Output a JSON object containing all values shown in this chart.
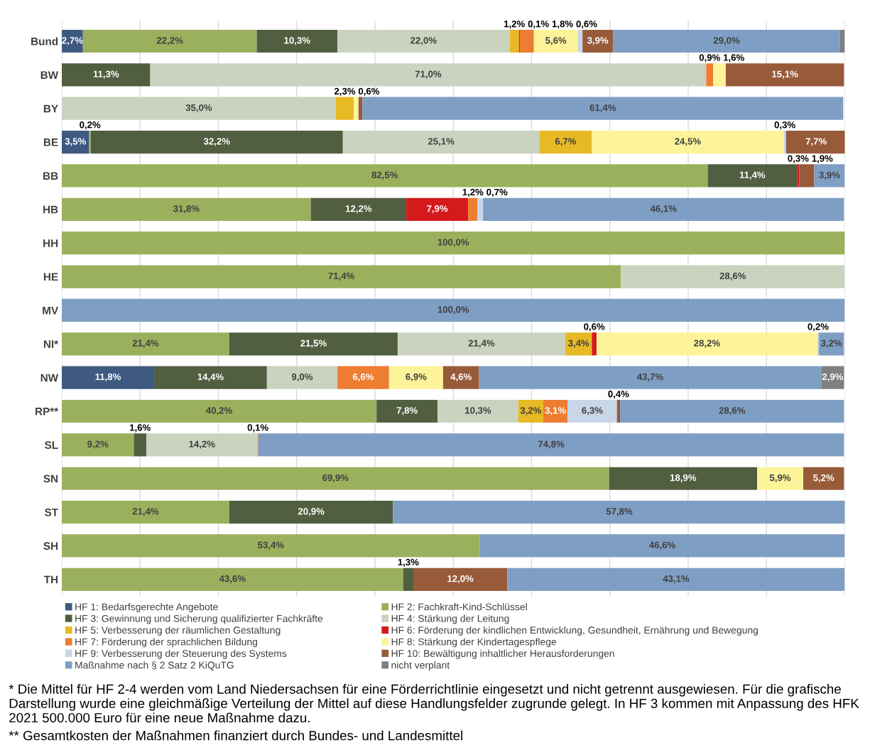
{
  "chart_data": {
    "type": "bar",
    "orientation": "horizontal",
    "stacked": true,
    "categories": [
      "Bund",
      "BW",
      "BY",
      "BE",
      "BB",
      "HB",
      "HH",
      "HE",
      "MV",
      "NI*",
      "NW",
      "RP**",
      "SL",
      "SN",
      "ST",
      "SH",
      "TH"
    ],
    "xlim": [
      0,
      100
    ],
    "xticks": [
      {
        "value": 0,
        "label": null
      },
      {
        "value": 10,
        "label": null
      },
      {
        "value": 20,
        "label": null
      },
      {
        "value": 30,
        "label": null
      },
      {
        "value": 40,
        "label": null
      },
      {
        "value": 50,
        "label": null
      },
      {
        "value": 60,
        "label": null
      },
      {
        "value": 70,
        "label": null
      },
      {
        "value": 80,
        "label": null
      },
      {
        "value": 90,
        "label": null
      },
      {
        "value": 100,
        "label": null
      }
    ],
    "tick_labels": "y",
    "grid": "x",
    "legend": "bottom",
    "series": [
      {
        "name": "HF 1: Bedarfsgerechte Angebote",
        "color": "#3f5a80",
        "values": [
          2.7,
          null,
          null,
          3.5,
          null,
          null,
          null,
          null,
          null,
          null,
          11.8,
          null,
          null,
          null,
          null,
          null,
          null
        ],
        "value_labels": [
          "2,7%",
          null,
          null,
          "3,5%",
          null,
          null,
          null,
          null,
          null,
          null,
          "11,8%",
          null,
          null,
          null,
          null,
          null,
          null
        ]
      },
      {
        "name": "HF 2: Fachkraft-Kind-Schlüssel",
        "color": "#9bb05d",
        "values": [
          22.2,
          null,
          null,
          0.2,
          82.5,
          31.8,
          100.0,
          71.4,
          null,
          21.4,
          null,
          40.2,
          9.2,
          69.9,
          21.4,
          53.4,
          43.6
        ],
        "value_labels": [
          "22,2%",
          null,
          null,
          "0,2%",
          "82,5%",
          "31,8%",
          "100,0%",
          "71,4%",
          null,
          "21,4%",
          null,
          "40,2%",
          "9,2%",
          "69,9%",
          "21,4%",
          "53,4%",
          "43,6%"
        ]
      },
      {
        "name": "HF 3: Gewinnung und Sicherung qualifizierter Fachkräfte",
        "color": "#515f40",
        "values": [
          10.3,
          11.3,
          null,
          32.2,
          11.4,
          12.2,
          null,
          null,
          null,
          21.5,
          14.4,
          7.8,
          1.6,
          18.9,
          20.9,
          null,
          1.3
        ],
        "value_labels": [
          "10,3%",
          "11,3%",
          null,
          "32,2%",
          "11,4%",
          "12,2%",
          null,
          null,
          null,
          "21,5%",
          "14,4%",
          "7,8%",
          "1,6%",
          "18,9%",
          "20,9%",
          null,
          "1,3%"
        ]
      },
      {
        "name": "HF 4: Stärkung der Leitung",
        "color": "#cad3bf",
        "values": [
          22.0,
          71.0,
          35.0,
          25.1,
          null,
          null,
          null,
          28.6,
          null,
          21.4,
          9.0,
          10.3,
          14.2,
          null,
          null,
          null,
          null
        ],
        "value_labels": [
          "22,0%",
          "71,0%",
          "35,0%",
          "25,1%",
          null,
          null,
          null,
          "28,6%",
          null,
          "21,4%",
          "9,0%",
          "10,3%",
          "14,2%",
          null,
          null,
          null,
          null
        ]
      },
      {
        "name": "HF 5: Verbesserung der räumlichen Gestaltung",
        "color": "#e6b925",
        "values": [
          1.2,
          null,
          2.3,
          6.7,
          null,
          null,
          null,
          null,
          null,
          3.4,
          null,
          3.2,
          null,
          null,
          null,
          null,
          null
        ],
        "value_labels": [
          "1,2%",
          null,
          "2,3%",
          "6,7%",
          null,
          null,
          null,
          null,
          null,
          "3,4%",
          null,
          "3,2%",
          null,
          null,
          null,
          null,
          null
        ]
      },
      {
        "name": "HF 6: Förderung der kindlichen Entwicklung, Gesundheit, Ernährung und Bewegung",
        "color": "#d51a1c",
        "values": [
          0.1,
          null,
          null,
          null,
          0.3,
          7.9,
          null,
          null,
          null,
          0.6,
          null,
          null,
          null,
          null,
          null,
          null,
          null
        ],
        "value_labels": [
          "0,1%",
          null,
          null,
          null,
          "0,3%",
          "7,9%",
          null,
          null,
          null,
          "0,6%",
          null,
          null,
          null,
          null,
          null,
          null,
          null
        ]
      },
      {
        "name": "HF 7: Förderung der sprachlichen Bildung",
        "color": "#ed7d31",
        "values": [
          1.8,
          0.9,
          null,
          null,
          null,
          1.2,
          null,
          null,
          null,
          null,
          6.6,
          3.1,
          0.1,
          null,
          null,
          null,
          null
        ],
        "value_labels": [
          "1,8%",
          "0,9%",
          null,
          null,
          null,
          "1,2%",
          null,
          null,
          null,
          null,
          "6,6%",
          "3,1%",
          "0,1%",
          null,
          null,
          null,
          null
        ]
      },
      {
        "name": "HF 8: Stärkung der Kindertagespflege",
        "color": "#fdf49a",
        "values": [
          5.6,
          1.6,
          0.6,
          24.5,
          null,
          null,
          null,
          null,
          null,
          28.2,
          6.9,
          null,
          null,
          5.9,
          null,
          null,
          null
        ],
        "value_labels": [
          "5,6%",
          "1,6%",
          "0,6%",
          "24,5%",
          null,
          null,
          null,
          null,
          null,
          "28,2%",
          "6,9%",
          null,
          null,
          "5,9%",
          null,
          null,
          null
        ]
      },
      {
        "name": "HF 9: Verbesserung der Steuerung des Systems",
        "color": "#c9d6e8",
        "values": [
          0.6,
          null,
          null,
          0.3,
          null,
          0.7,
          null,
          null,
          null,
          0.2,
          null,
          6.3,
          null,
          null,
          null,
          null,
          null
        ],
        "value_labels": [
          "0,6%",
          null,
          null,
          "0,3%",
          null,
          "0,7%",
          null,
          null,
          null,
          "0,2%",
          null,
          "6,3%",
          null,
          null,
          null,
          null,
          null
        ]
      },
      {
        "name": "HF 10: Bewältigung inhaltlicher Herausforderungen",
        "color": "#985b3a",
        "values": [
          3.9,
          15.1,
          0.5,
          7.7,
          1.9,
          null,
          null,
          null,
          null,
          null,
          4.6,
          0.4,
          null,
          5.2,
          null,
          null,
          12.0
        ],
        "value_labels": [
          "3,9%",
          "15,1%",
          null,
          "7,7%",
          "1,9%",
          null,
          null,
          null,
          null,
          null,
          "4,6%",
          "0,4%",
          null,
          "5,2%",
          null,
          null,
          "12,0%"
        ]
      },
      {
        "name": "Maßnahme nach § 2 Satz 2 KiQuTG",
        "color": "#7f9ec4",
        "values": [
          29.0,
          null,
          61.4,
          null,
          3.9,
          46.1,
          null,
          null,
          100.0,
          3.2,
          43.7,
          28.6,
          74.8,
          null,
          57.8,
          46.6,
          43.1
        ],
        "value_labels": [
          "29,0%",
          null,
          "61,4%",
          null,
          "3,9%",
          "46,1%",
          null,
          null,
          "100,0%",
          "3,2%",
          "43,7%",
          "28,6%",
          "74,8%",
          null,
          "57,8%",
          "46,6%",
          "43,1%"
        ]
      },
      {
        "name": "nicht verplant",
        "color": "#7f7f7f",
        "values": [
          0.6,
          null,
          null,
          null,
          null,
          null,
          null,
          null,
          null,
          null,
          2.9,
          null,
          null,
          null,
          null,
          null,
          null
        ],
        "value_labels": [
          null,
          null,
          null,
          null,
          null,
          null,
          null,
          null,
          null,
          null,
          "2,9%",
          null,
          null,
          null,
          null,
          null,
          null
        ]
      }
    ],
    "annotations": [
      "* Die Mittel für HF 2-4 werden vom Land Niedersachsen für eine Förderrichtlinie eingesetzt und nicht getrennt ausgewiesen. Für die grafische Darstellung wurde eine gleichmäßige Verteilung der Mittel auf diese Handlungsfelder zugrunde gelegt. In HF 3 kommen mit Anpassung des HFK 2021 500.000 Euro für eine neue Maßnahme dazu.",
      "** Gesamtkosten der Maßnahmen finanziert durch Bundes- und Landesmittel"
    ]
  }
}
